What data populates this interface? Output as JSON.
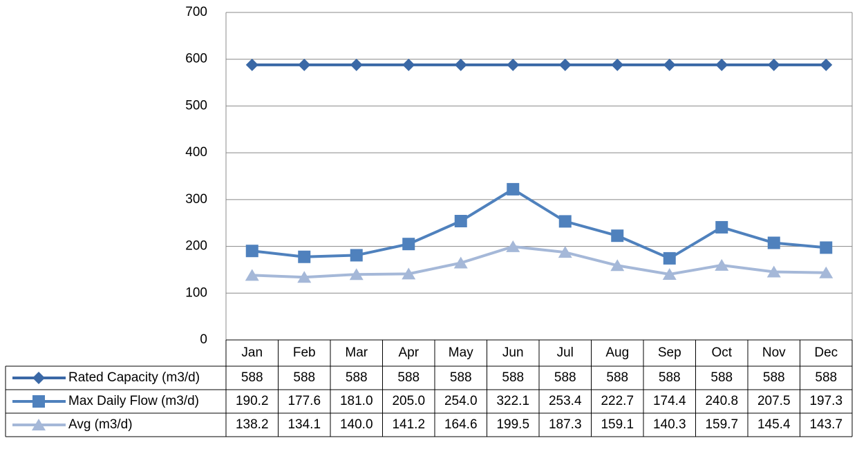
{
  "chart_data": {
    "type": "line",
    "categories": [
      "Jan",
      "Feb",
      "Mar",
      "Apr",
      "May",
      "Jun",
      "Jul",
      "Aug",
      "Sep",
      "Oct",
      "Nov",
      "Dec"
    ],
    "series": [
      {
        "name": "Rated Capacity (m3/d)",
        "color": "#3a68a6",
        "marker": "diamond",
        "values": [
          588,
          588,
          588,
          588,
          588,
          588,
          588,
          588,
          588,
          588,
          588,
          588
        ]
      },
      {
        "name": "Max Daily Flow (m3/d)",
        "color": "#4f81bd",
        "marker": "square",
        "values": [
          190.2,
          177.6,
          181,
          205,
          254,
          322.1,
          253.4,
          222.7,
          174.4,
          240.8,
          207.5,
          197.3
        ],
        "value_labels": [
          "190.2",
          "177.6",
          "181.0",
          "205.0",
          "254.0",
          "322.1",
          "253.4",
          "222.7",
          "174.4",
          "240.8",
          "207.5",
          "197.3"
        ]
      },
      {
        "name": "Avg (m3/d)",
        "color": "#a5b8d8",
        "marker": "triangle",
        "values": [
          138.2,
          134.1,
          140,
          141.2,
          164.6,
          199.5,
          187.3,
          159.1,
          140.3,
          159.7,
          145.4,
          143.7
        ],
        "value_labels": [
          "138.2",
          "134.1",
          "140.0",
          "141.2",
          "164.6",
          "199.5",
          "187.3",
          "159.1",
          "140.3",
          "159.7",
          "145.4",
          "143.7"
        ]
      }
    ],
    "ylim": [
      0,
      700
    ],
    "yticks": [
      0,
      100,
      200,
      300,
      400,
      500,
      600,
      700
    ],
    "grid": true
  }
}
